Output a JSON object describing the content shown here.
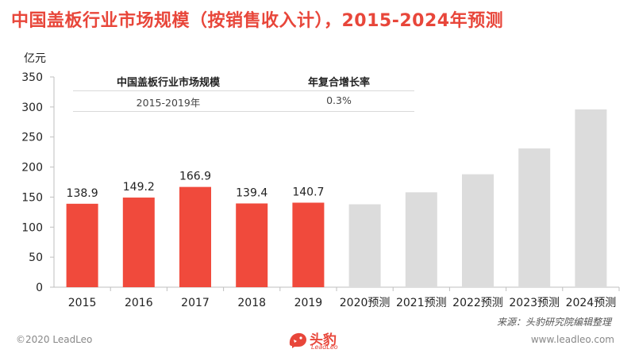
{
  "title": "中国盖板行业市场规模（按销售收入计），2015-2024年预测",
  "unit": "亿元",
  "inset_table": {
    "header": [
      "中国盖板行业市场规模",
      "年复合增长率"
    ],
    "row": [
      "2015-2019年",
      "0.3%"
    ]
  },
  "source": "来源：头豹研究院编辑整理",
  "footer": {
    "copyright": "©2020 LeadLeo",
    "website": "www.leadleo.com",
    "logo_cn": "头豹",
    "logo_en": "LeadLeo"
  },
  "colors": {
    "title": "#e8463a",
    "actual_bar": "#f04a3c",
    "forecast_bar": "#dcdcdc"
  },
  "chart_data": {
    "type": "bar",
    "title": "中国盖板行业市场规模（按销售收入计），2015-2024年预测",
    "ylabel": "亿元",
    "xlabel": "",
    "ylim": [
      0,
      350
    ],
    "yticks": [
      0,
      50,
      100,
      150,
      200,
      250,
      300,
      350
    ],
    "categories": [
      "2015",
      "2016",
      "2017",
      "2018",
      "2019",
      "2020预测",
      "2021预测",
      "2022预测",
      "2023预测",
      "2024预测"
    ],
    "values": [
      138.9,
      149.2,
      166.9,
      139.4,
      140.7,
      138,
      158,
      188,
      231,
      296
    ],
    "labels": [
      "138.9",
      "149.2",
      "166.9",
      "139.4",
      "140.7",
      null,
      null,
      null,
      null,
      null
    ],
    "forecast": [
      false,
      false,
      false,
      false,
      false,
      true,
      true,
      true,
      true,
      true
    ],
    "grid": false
  }
}
